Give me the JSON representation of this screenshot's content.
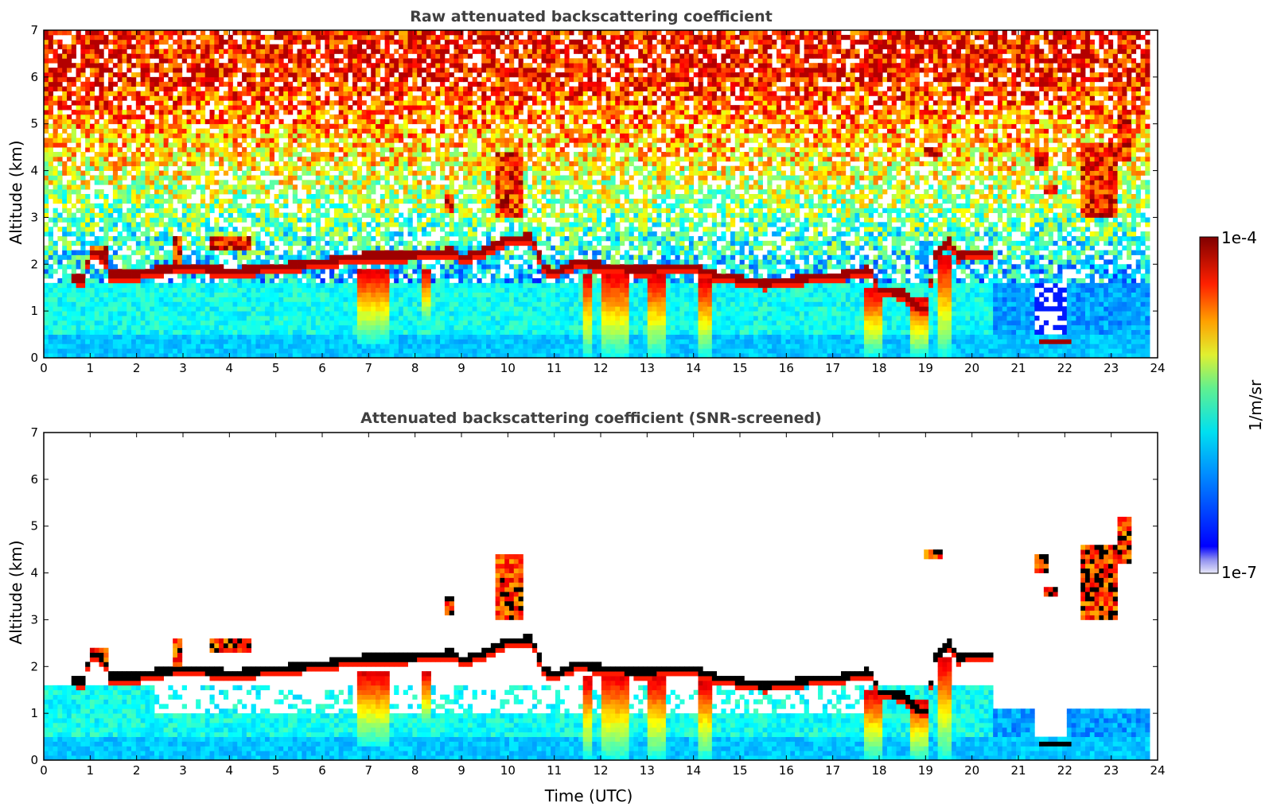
{
  "chart_data": [
    {
      "type": "heatmap",
      "title": "Raw attenuated backscattering coefficient",
      "xlabel": "",
      "ylabel": "Altitude (km)",
      "xlim": [
        0,
        24
      ],
      "ylim": [
        0,
        7
      ],
      "xticks": [
        "0",
        "1",
        "2",
        "3",
        "4",
        "5",
        "6",
        "7",
        "8",
        "9",
        "10",
        "11",
        "12",
        "13",
        "14",
        "15",
        "16",
        "17",
        "18",
        "19",
        "20",
        "21",
        "22",
        "23",
        "24"
      ],
      "yticks": [
        "0",
        "1",
        "2",
        "3",
        "4",
        "5",
        "6",
        "7"
      ],
      "data_extent_x": [
        0,
        23.83
      ],
      "screened": false
    },
    {
      "type": "heatmap",
      "title": "Attenuated backscattering coefficient (SNR-screened)",
      "xlabel": "Time (UTC)",
      "ylabel": "Altitude (km)",
      "xlim": [
        0,
        24
      ],
      "ylim": [
        0,
        7
      ],
      "xticks": [
        "0",
        "1",
        "2",
        "3",
        "4",
        "5",
        "6",
        "7",
        "8",
        "9",
        "10",
        "11",
        "12",
        "13",
        "14",
        "15",
        "16",
        "17",
        "18",
        "19",
        "20",
        "21",
        "22",
        "23",
        "24"
      ],
      "yticks": [
        "0",
        "1",
        "2",
        "3",
        "4",
        "5",
        "6",
        "7"
      ],
      "data_extent_x": [
        0,
        23.83
      ],
      "screened": true
    }
  ],
  "colorbar": {
    "label": "1/m/sr",
    "max_label": "1e-4",
    "min_label": "1e-7",
    "scale": "log",
    "range": [
      1e-07,
      0.0001
    ],
    "colormap": "jet"
  },
  "cloud_layer": [
    [
      0.6,
      1.72
    ],
    [
      0.85,
      1.7
    ],
    [
      1.0,
      2.25
    ],
    [
      1.3,
      2.2
    ],
    [
      1.4,
      1.78
    ],
    [
      2.0,
      1.8
    ],
    [
      2.5,
      1.9
    ],
    [
      3.0,
      1.94
    ],
    [
      3.5,
      1.92
    ],
    [
      4.0,
      1.86
    ],
    [
      4.5,
      1.9
    ],
    [
      5.0,
      1.96
    ],
    [
      5.5,
      2.0
    ],
    [
      6.0,
      2.06
    ],
    [
      6.5,
      2.14
    ],
    [
      7.0,
      2.2
    ],
    [
      7.5,
      2.18
    ],
    [
      8.0,
      2.22
    ],
    [
      8.5,
      2.25
    ],
    [
      8.8,
      2.3
    ],
    [
      9.0,
      2.12
    ],
    [
      9.5,
      2.3
    ],
    [
      10.0,
      2.55
    ],
    [
      10.5,
      2.6
    ],
    [
      10.8,
      1.9
    ],
    [
      11.0,
      1.85
    ],
    [
      11.5,
      2.05
    ],
    [
      12.0,
      1.98
    ],
    [
      12.5,
      1.92
    ],
    [
      13.0,
      1.9
    ],
    [
      13.5,
      1.96
    ],
    [
      14.0,
      1.95
    ],
    [
      14.5,
      1.78
    ],
    [
      15.0,
      1.7
    ],
    [
      15.5,
      1.6
    ],
    [
      16.0,
      1.65
    ],
    [
      16.5,
      1.72
    ],
    [
      17.0,
      1.74
    ],
    [
      17.5,
      1.85
    ],
    [
      17.8,
      1.9
    ],
    [
      18.0,
      1.45
    ],
    [
      18.5,
      1.4
    ],
    [
      19.0,
      0.95
    ],
    [
      19.2,
      2.2
    ],
    [
      19.5,
      2.5
    ],
    [
      19.7,
      2.2
    ],
    [
      20.0,
      2.25
    ],
    [
      20.5,
      2.25
    ]
  ],
  "low_cloud": [
    [
      21.4,
      0.38
    ],
    [
      22.1,
      0.38
    ]
  ],
  "elevated_clouds": [
    {
      "x": [
        1.0,
        1.4
      ],
      "y": [
        2.15,
        2.35
      ]
    },
    {
      "x": [
        2.8,
        3.0
      ],
      "y": [
        2.0,
        2.6
      ]
    },
    {
      "x": [
        3.6,
        4.5
      ],
      "y": [
        2.3,
        2.6
      ]
    },
    {
      "x": [
        8.6,
        8.8
      ],
      "y": [
        3.1,
        3.5
      ]
    },
    {
      "x": [
        9.7,
        10.3
      ],
      "y": [
        3.0,
        4.4
      ]
    },
    {
      "x": [
        19.0,
        19.4
      ],
      "y": [
        4.3,
        4.5
      ]
    },
    {
      "x": [
        21.3,
        21.6
      ],
      "y": [
        4.0,
        4.4
      ]
    },
    {
      "x": [
        21.5,
        21.8
      ],
      "y": [
        3.5,
        3.7
      ]
    },
    {
      "x": [
        22.3,
        23.1
      ],
      "y": [
        3.0,
        4.6
      ]
    },
    {
      "x": [
        23.1,
        23.4
      ],
      "y": [
        4.2,
        5.2
      ]
    }
  ],
  "precip_streaks": [
    {
      "x": [
        6.8,
        7.4
      ],
      "top": 1.9,
      "bottom": 0.3
    },
    {
      "x": [
        8.15,
        8.3
      ],
      "top": 1.9,
      "bottom": 0.7
    },
    {
      "x": [
        11.6,
        11.8
      ],
      "top": 1.8,
      "bottom": 0.0
    },
    {
      "x": [
        12.0,
        12.6
      ],
      "top": 1.85,
      "bottom": 0.0
    },
    {
      "x": [
        13.0,
        13.4
      ],
      "top": 1.8,
      "bottom": 0.0
    },
    {
      "x": [
        14.1,
        14.4
      ],
      "top": 1.7,
      "bottom": 0.0
    },
    {
      "x": [
        17.7,
        18.1
      ],
      "top": 1.5,
      "bottom": 0.0
    },
    {
      "x": [
        18.7,
        19.1
      ],
      "top": 1.3,
      "bottom": 0.0
    },
    {
      "x": [
        19.3,
        19.6
      ],
      "top": 2.2,
      "bottom": 0.0
    }
  ]
}
